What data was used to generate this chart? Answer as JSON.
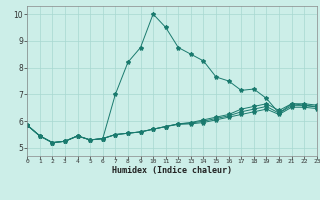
{
  "xlabel": "Humidex (Indice chaleur)",
  "bg_color": "#cceee8",
  "line_color": "#1a7a6e",
  "xlim": [
    0,
    23
  ],
  "ylim": [
    4.7,
    10.3
  ],
  "xticks": [
    0,
    1,
    2,
    3,
    4,
    5,
    6,
    7,
    8,
    9,
    10,
    11,
    12,
    13,
    14,
    15,
    16,
    17,
    18,
    19,
    20,
    21,
    22,
    23
  ],
  "yticks": [
    5,
    6,
    7,
    8,
    9,
    10
  ],
  "series": [
    [
      5.85,
      5.45,
      5.2,
      5.25,
      5.45,
      5.3,
      5.35,
      7.0,
      8.2,
      8.75,
      10.0,
      9.5,
      8.75,
      8.5,
      8.25,
      7.65,
      7.5,
      7.15,
      7.2,
      6.85,
      6.3,
      6.65,
      6.6,
      6.55
    ],
    [
      5.85,
      5.45,
      5.2,
      5.25,
      5.45,
      5.3,
      5.35,
      5.5,
      5.55,
      5.6,
      5.7,
      5.8,
      5.9,
      5.95,
      6.05,
      6.15,
      6.25,
      6.45,
      6.55,
      6.65,
      6.4,
      6.65,
      6.65,
      6.6
    ],
    [
      5.85,
      5.45,
      5.2,
      5.25,
      5.45,
      5.3,
      5.35,
      5.5,
      5.55,
      5.6,
      5.7,
      5.8,
      5.9,
      5.93,
      6.0,
      6.1,
      6.2,
      6.35,
      6.45,
      6.55,
      6.3,
      6.58,
      6.58,
      6.53
    ],
    [
      5.85,
      5.45,
      5.2,
      5.25,
      5.45,
      5.3,
      5.35,
      5.5,
      5.55,
      5.6,
      5.7,
      5.8,
      5.88,
      5.9,
      5.95,
      6.05,
      6.15,
      6.25,
      6.35,
      6.45,
      6.25,
      6.52,
      6.52,
      6.47
    ]
  ]
}
